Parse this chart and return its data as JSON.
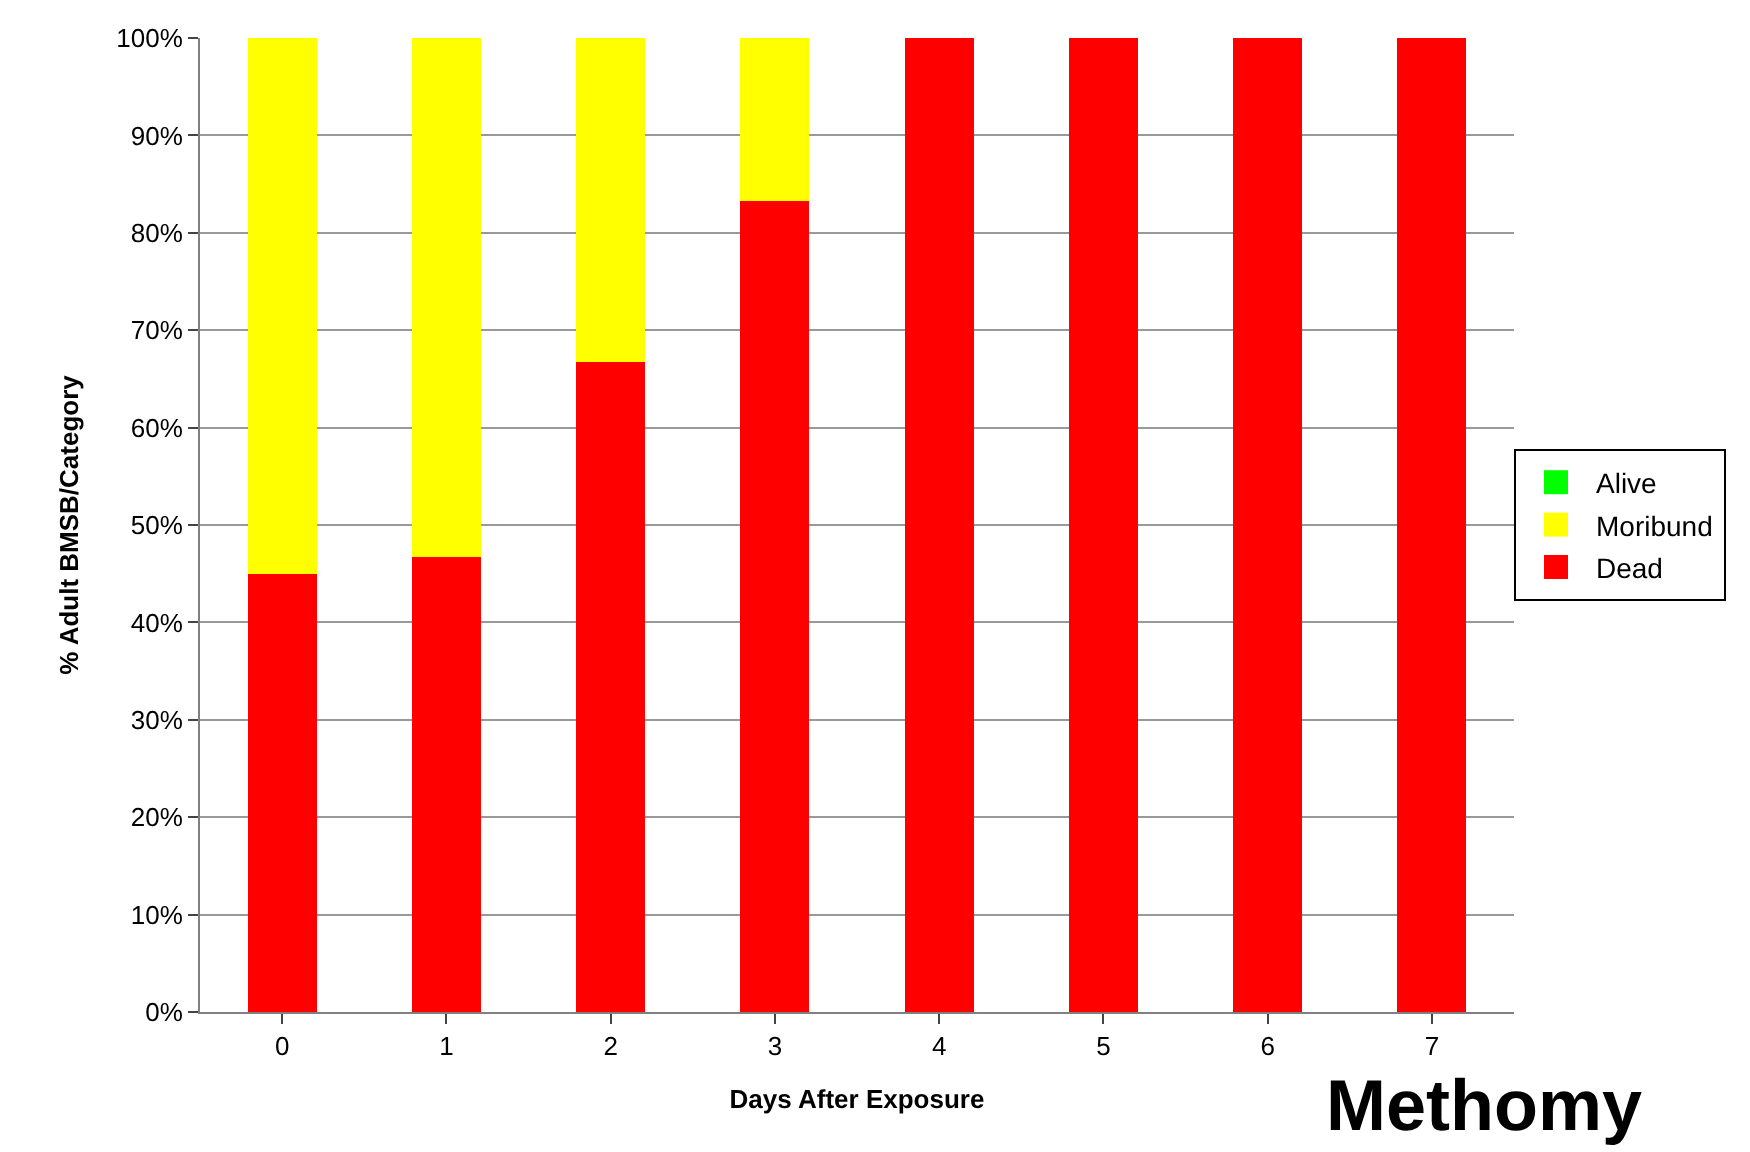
{
  "chart_data": {
    "type": "bar",
    "stacked": true,
    "xlabel": "Days After Exposure",
    "ylabel": "% Adult BMSB/Category",
    "categories": [
      "0",
      "1",
      "2",
      "3",
      "4",
      "5",
      "6",
      "7"
    ],
    "series": [
      {
        "name": "Dead",
        "color": "#ff0000",
        "values": [
          45,
          46.7,
          66.7,
          83.3,
          100,
          100,
          100,
          100
        ]
      },
      {
        "name": "Moribund",
        "color": "#ffff00",
        "values": [
          55,
          53.3,
          33.3,
          16.7,
          0,
          0,
          0,
          0
        ]
      },
      {
        "name": "Alive",
        "color": "#00ff00",
        "values": [
          0,
          0,
          0,
          0,
          0,
          0,
          0,
          0
        ]
      }
    ],
    "ylim": [
      0,
      100
    ],
    "yticks": [
      {
        "value": 0,
        "label": "0%"
      },
      {
        "value": 10,
        "label": "10%"
      },
      {
        "value": 20,
        "label": "20%"
      },
      {
        "value": 30,
        "label": "30%"
      },
      {
        "value": 40,
        "label": "40%"
      },
      {
        "value": 50,
        "label": "50%"
      },
      {
        "value": 60,
        "label": "60%"
      },
      {
        "value": 70,
        "label": "70%"
      },
      {
        "value": 80,
        "label": "80%"
      },
      {
        "value": 90,
        "label": "90%"
      },
      {
        "value": 100,
        "label": "100%"
      }
    ],
    "grid": "y",
    "legend": "right",
    "annotations": [
      "Methomy"
    ]
  }
}
